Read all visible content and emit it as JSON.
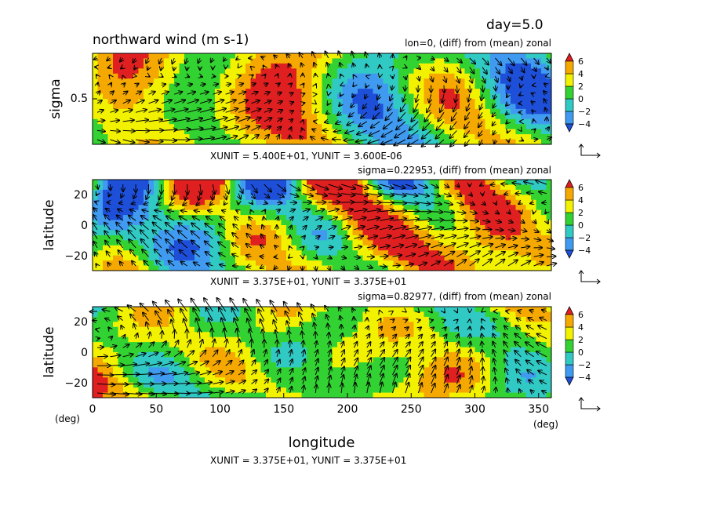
{
  "figure": {
    "day_label": "day=5.0",
    "title": "northward wind (m s-1)",
    "xlabel": "longitude",
    "x_unit_left": "(deg)",
    "x_unit_right": "(deg)",
    "bottom_unit_note": "XUNIT = 3.375E+01, YUNIT = 3.375E+01"
  },
  "chart_data": [
    {
      "type": "heatmap",
      "panel": "lon-sigma",
      "subtitle": "lon=0, (diff) from (mean) zonal",
      "ylabel": "sigma",
      "yticks": [
        "0.5"
      ],
      "ytick_values": [
        0.5
      ],
      "ylim": [
        1.0,
        0.0
      ],
      "xlim": [
        0,
        360
      ],
      "unit_note": "XUNIT = 5.400E+01, YUNIT = 3.600E-06",
      "colorbar_levels": [
        -6,
        -4,
        -2,
        0,
        2,
        4,
        6
      ],
      "colorbar_labels": [
        "6",
        "4",
        "2",
        "0",
        "−2",
        "−4"
      ],
      "colors": [
        "#1e4fd8",
        "#3f9af0",
        "#31c9c4",
        "#33d233",
        "#f2f200",
        "#f5a900",
        "#e02020"
      ],
      "value_range": [
        -8,
        8
      ],
      "vectors": true
    },
    {
      "type": "heatmap",
      "panel": "lon-lat",
      "subtitle": "sigma=0.22953, (diff) from (mean) zonal",
      "ylabel": "latitude",
      "yticks": [
        "20",
        "0",
        "−20"
      ],
      "ytick_values": [
        20,
        0,
        -20
      ],
      "ylim": [
        -30,
        30
      ],
      "xlim": [
        0,
        360
      ],
      "unit_note": "XUNIT = 3.375E+01, YUNIT = 3.375E+01",
      "colorbar_labels": [
        "6",
        "4",
        "2",
        "0",
        "−2",
        "−4"
      ],
      "vectors": true
    },
    {
      "type": "heatmap",
      "panel": "lon-lat",
      "subtitle": "sigma=0.82977, (diff) from (mean) zonal",
      "ylabel": "latitude",
      "yticks": [
        "20",
        "0",
        "−20"
      ],
      "ytick_values": [
        20,
        0,
        -20
      ],
      "ylim": [
        -30,
        30
      ],
      "xlim": [
        0,
        360
      ],
      "xticks": [
        "0",
        "50",
        "100",
        "150",
        "200",
        "250",
        "300",
        "350"
      ],
      "xtick_values": [
        0,
        50,
        100,
        150,
        200,
        250,
        300,
        350
      ],
      "colorbar_labels": [
        "6",
        "4",
        "2",
        "0",
        "−2",
        "−4"
      ],
      "vectors": true
    }
  ]
}
